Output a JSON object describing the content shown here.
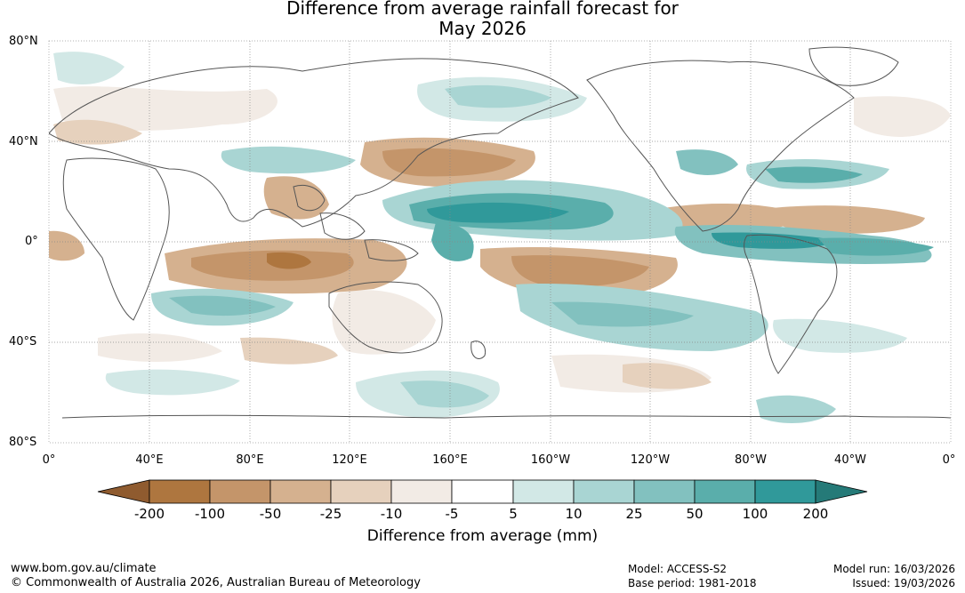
{
  "title": {
    "line1": "Difference from average rainfall forecast for",
    "line2": "May 2026"
  },
  "axes": {
    "lat_labels": [
      "80°N",
      "40°N",
      "0°",
      "40°S",
      "80°S"
    ],
    "lon_labels": [
      "0°",
      "40°E",
      "80°E",
      "120°E",
      "160°E",
      "160°W",
      "120°W",
      "80°W",
      "40°W",
      "0°"
    ]
  },
  "legend": {
    "title": "Difference from average (mm)",
    "thresholds": [
      "-200",
      "-100",
      "-50",
      "-25",
      "-10",
      "-5",
      "5",
      "10",
      "25",
      "50",
      "100",
      "200"
    ],
    "colors": {
      "dry_extend": "#8f5b2f",
      "bin_1": "#ae763f",
      "bin_2": "#c4956a",
      "bin_3": "#d5b18f",
      "bin_4": "#e6d1bd",
      "bin_5": "#f2ebe5",
      "bin_6": "#ffffff",
      "bin_7": "#d2e8e6",
      "bin_8": "#a9d5d3",
      "bin_9": "#82c1bf",
      "bin_10": "#5aaeab",
      "bin_11": "#30999a",
      "wet_extend": "#257a78"
    }
  },
  "footer": {
    "url": "www.bom.gov.au/climate",
    "copyright": "© Commonwealth of Australia 2026, Australian Bureau of Meteorology",
    "model": "Model: ACCESS-S2",
    "base_period": "Base period: 1981-2018",
    "model_run": "Model run: 16/03/2026",
    "issued": "Issued: 19/03/2026"
  }
}
